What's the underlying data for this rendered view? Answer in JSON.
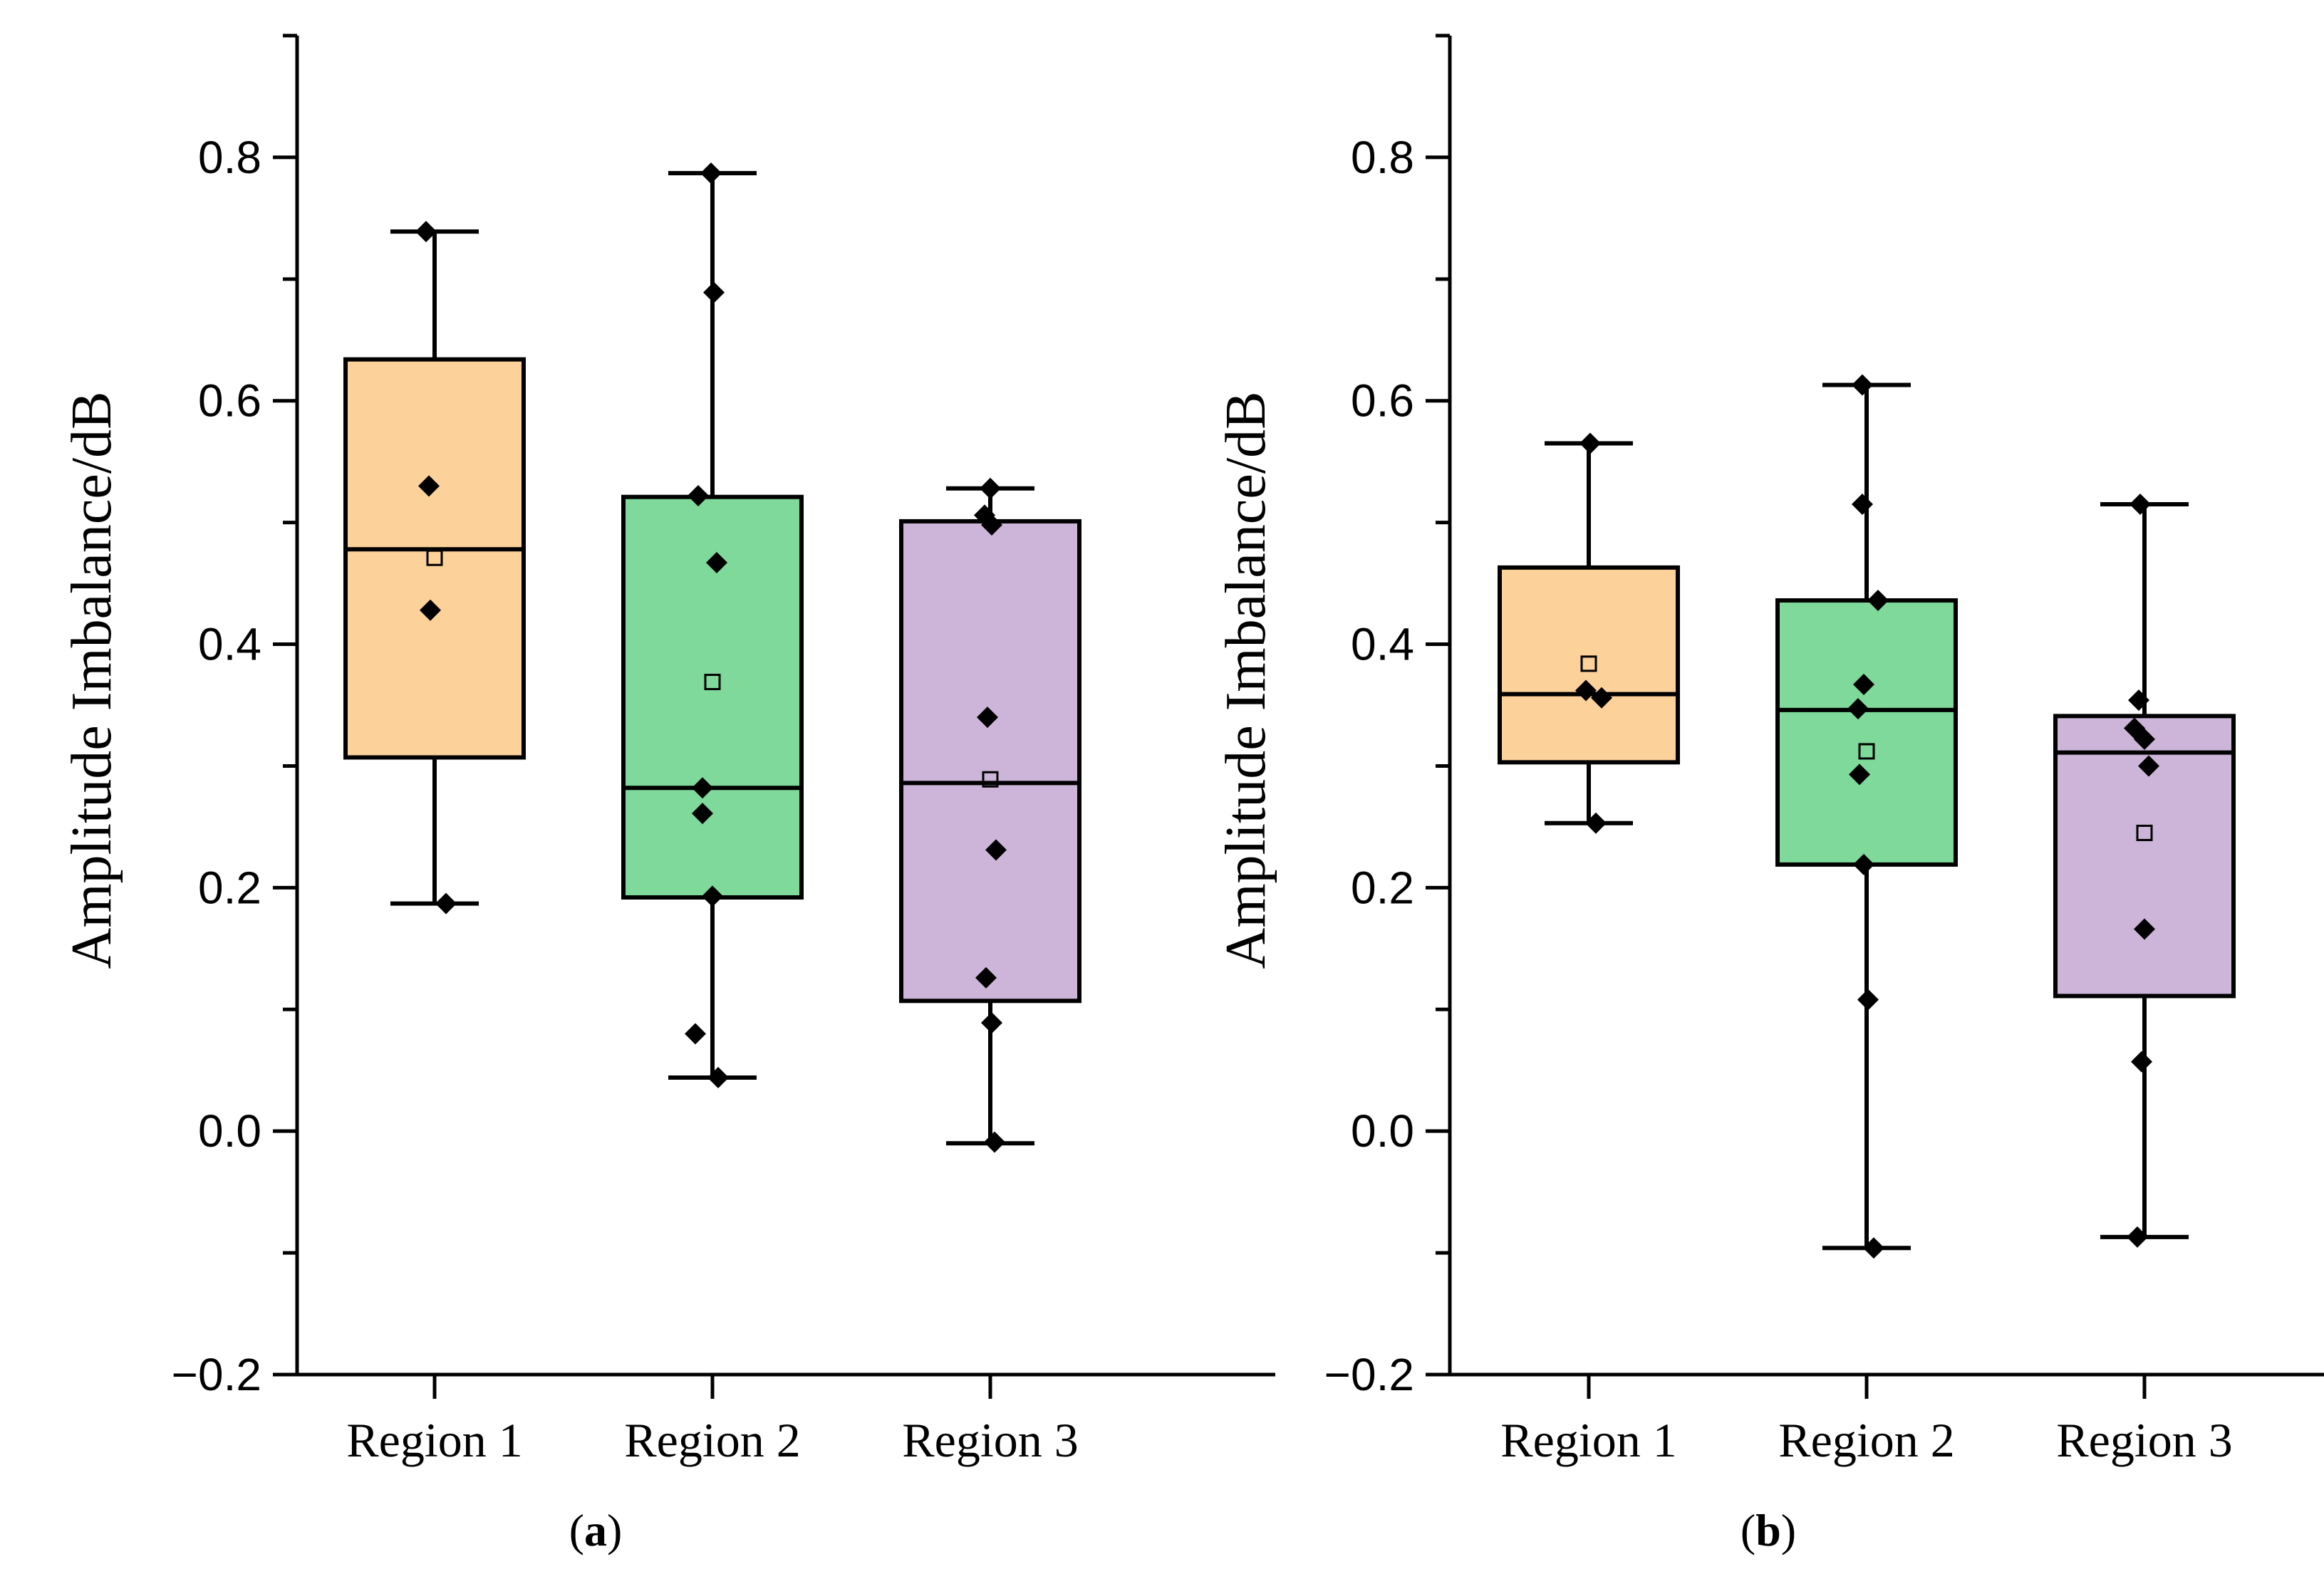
{
  "chart_data": [
    {
      "type": "box",
      "panel_label": "a",
      "title": "",
      "xlabel": "",
      "ylabel": "Amplitude Imbalance/dB",
      "ylim": [
        -0.2,
        0.9
      ],
      "yticks": [
        -0.2,
        0.0,
        0.2,
        0.4,
        0.6,
        0.8
      ],
      "ytick_labels": [
        "−0.2",
        "0.0",
        "0.2",
        "0.4",
        "0.6",
        "0.8"
      ],
      "categories": [
        "Region 1",
        "Region 2",
        "Region 3"
      ],
      "series": [
        {
          "name": "Region 1",
          "color": "#FDD19A",
          "whisker_low": 0.187,
          "q1": 0.307,
          "median": 0.478,
          "q3": 0.634,
          "whisker_high": 0.739,
          "mean": 0.471,
          "points": [
            [
              0.739,
              -0.06
            ],
            [
              0.53,
              -0.04
            ],
            [
              0.428,
              -0.03
            ],
            [
              0.187,
              0.08
            ]
          ]
        },
        {
          "name": "Region 2",
          "color": "#7ED99A",
          "whisker_low": 0.044,
          "q1": 0.192,
          "median": 0.282,
          "q3": 0.521,
          "whisker_high": 0.787,
          "mean": 0.369,
          "points": [
            [
              0.787,
              -0.01
            ],
            [
              0.689,
              0.01
            ],
            [
              0.522,
              -0.1
            ],
            [
              0.467,
              0.03
            ],
            [
              0.282,
              -0.07
            ],
            [
              0.261,
              -0.07
            ],
            [
              0.193,
              0.0
            ],
            [
              0.08,
              -0.12
            ],
            [
              0.044,
              0.04
            ]
          ]
        },
        {
          "name": "Region 3",
          "color": "#CDB5D9",
          "whisker_low": -0.01,
          "q1": 0.107,
          "median": 0.286,
          "q3": 0.501,
          "whisker_high": 0.528,
          "mean": 0.289,
          "points": [
            [
              0.528,
              0.0
            ],
            [
              0.506,
              -0.04
            ],
            [
              0.498,
              0.01
            ],
            [
              0.34,
              -0.02
            ],
            [
              0.231,
              0.04
            ],
            [
              0.126,
              -0.03
            ],
            [
              0.089,
              0.01
            ],
            [
              -0.009,
              0.03
            ]
          ]
        }
      ]
    },
    {
      "type": "box",
      "panel_label": "b",
      "title": "",
      "xlabel": "",
      "ylabel": "Amplitude Imbalance/dB",
      "ylim": [
        -0.2,
        0.9
      ],
      "yticks": [
        -0.2,
        0.0,
        0.2,
        0.4,
        0.6,
        0.8
      ],
      "ytick_labels": [
        "−0.2",
        "0.0",
        "0.2",
        "0.4",
        "0.6",
        "0.8"
      ],
      "categories": [
        "Region 1",
        "Region 2",
        "Region 3"
      ],
      "series": [
        {
          "name": "Region 1",
          "color": "#FDD19A",
          "whisker_low": 0.253,
          "q1": 0.303,
          "median": 0.359,
          "q3": 0.463,
          "whisker_high": 0.565,
          "mean": 0.384,
          "points": [
            [
              0.565,
              0.01
            ],
            [
              0.362,
              -0.02
            ],
            [
              0.356,
              0.09
            ],
            [
              0.253,
              0.05
            ]
          ]
        },
        {
          "name": "Region 2",
          "color": "#7ED99A",
          "whisker_low": -0.096,
          "q1": 0.219,
          "median": 0.346,
          "q3": 0.436,
          "whisker_high": 0.613,
          "mean": 0.312,
          "points": [
            [
              0.613,
              -0.03
            ],
            [
              0.515,
              -0.03
            ],
            [
              0.436,
              0.08
            ],
            [
              0.367,
              -0.02
            ],
            [
              0.347,
              -0.06
            ],
            [
              0.293,
              -0.05
            ],
            [
              0.219,
              -0.02
            ],
            [
              0.108,
              0.01
            ],
            [
              -0.096,
              0.05
            ]
          ]
        },
        {
          "name": "Region 3",
          "color": "#CDB5D9",
          "whisker_low": -0.087,
          "q1": 0.111,
          "median": 0.311,
          "q3": 0.341,
          "whisker_high": 0.515,
          "mean": 0.245,
          "points": [
            [
              0.515,
              -0.03
            ],
            [
              0.354,
              -0.04
            ],
            [
              0.331,
              -0.07
            ],
            [
              0.322,
              0.0
            ],
            [
              0.3,
              0.03
            ],
            [
              0.166,
              0.0
            ],
            [
              0.057,
              -0.02
            ],
            [
              -0.087,
              -0.05
            ]
          ]
        }
      ]
    }
  ]
}
